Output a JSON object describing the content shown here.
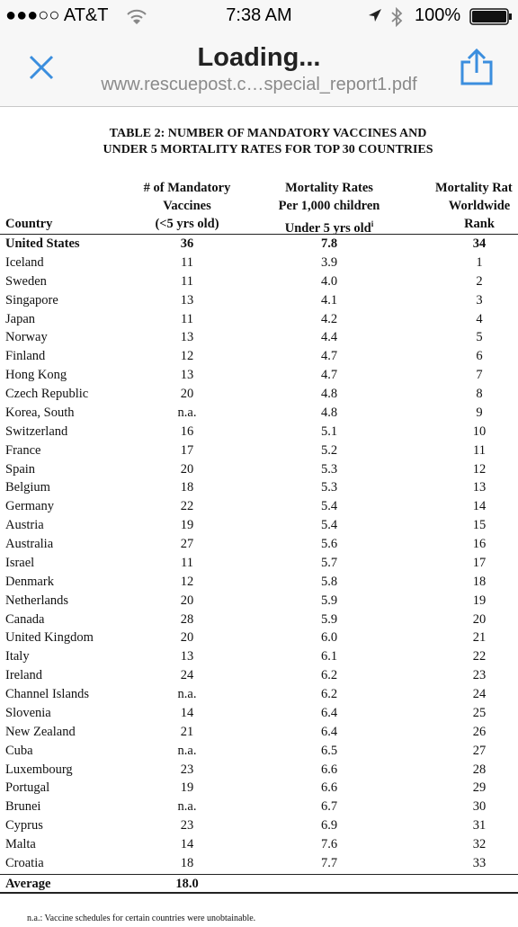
{
  "status_bar": {
    "carrier": "●●●○○ AT&T",
    "time": "7:38 AM",
    "battery": "100%"
  },
  "nav": {
    "title": "Loading...",
    "url": "www.rescuepost.c…special_report1.pdf"
  },
  "table": {
    "title": [
      "TABLE 2: NUMBER OF MANDATORY VACCINES AND",
      "UNDER 5 MORTALITY RATES FOR TOP 30 COUNTRIES"
    ],
    "headers": [
      [
        "Country"
      ],
      [
        "# of Mandatory",
        "Vaccines",
        "(<5 yrs old)"
      ],
      [
        "Mortality Rates",
        "Per 1,000 children",
        "Under 5 yrs old"
      ],
      [
        "Mortality Rat",
        "Worldwide",
        "Rank"
      ]
    ],
    "footnote_marker": "i",
    "rows": [
      [
        "United States",
        "36",
        "7.8",
        "34"
      ],
      [
        "Iceland",
        "11",
        "3.9",
        "1"
      ],
      [
        "Sweden",
        "11",
        "4.0",
        "2"
      ],
      [
        "Singapore",
        "13",
        "4.1",
        "3"
      ],
      [
        "Japan",
        "11",
        "4.2",
        "4"
      ],
      [
        "Norway",
        "13",
        "4.4",
        "5"
      ],
      [
        "Finland",
        "12",
        "4.7",
        "6"
      ],
      [
        "Hong Kong",
        "13",
        "4.7",
        "7"
      ],
      [
        "Czech Republic",
        "20",
        "4.8",
        "8"
      ],
      [
        "Korea, South",
        "n.a.",
        "4.8",
        "9"
      ],
      [
        "Switzerland",
        "16",
        "5.1",
        "10"
      ],
      [
        "France",
        "17",
        "5.2",
        "11"
      ],
      [
        "Spain",
        "20",
        "5.3",
        "12"
      ],
      [
        "Belgium",
        "18",
        "5.3",
        "13"
      ],
      [
        "Germany",
        "22",
        "5.4",
        "14"
      ],
      [
        "Austria",
        "19",
        "5.4",
        "15"
      ],
      [
        "Australia",
        "27",
        "5.6",
        "16"
      ],
      [
        "Israel",
        "11",
        "5.7",
        "17"
      ],
      [
        "Denmark",
        "12",
        "5.8",
        "18"
      ],
      [
        "Netherlands",
        "20",
        "5.9",
        "19"
      ],
      [
        "Canada",
        "28",
        "5.9",
        "20"
      ],
      [
        "United Kingdom",
        "20",
        "6.0",
        "21"
      ],
      [
        "Italy",
        "13",
        "6.1",
        "22"
      ],
      [
        "Ireland",
        "24",
        "6.2",
        "23"
      ],
      [
        "Channel Islands",
        "n.a.",
        "6.2",
        "24"
      ],
      [
        "Slovenia",
        "14",
        "6.4",
        "25"
      ],
      [
        "New Zealand",
        "21",
        "6.4",
        "26"
      ],
      [
        "Cuba",
        "n.a.",
        "6.5",
        "27"
      ],
      [
        "Luxembourg",
        "23",
        "6.6",
        "28"
      ],
      [
        "Portugal",
        "19",
        "6.6",
        "29"
      ],
      [
        "Brunei",
        "n.a.",
        "6.7",
        "30"
      ],
      [
        "Cyprus",
        "23",
        "6.9",
        "31"
      ],
      [
        "Malta",
        "14",
        "7.6",
        "32"
      ],
      [
        "Croatia",
        "18",
        "7.7",
        "33"
      ]
    ],
    "average": [
      "Average",
      "18.0"
    ],
    "footnote": "n.a.: Vaccine schedules for certain countries were unobtainable."
  }
}
